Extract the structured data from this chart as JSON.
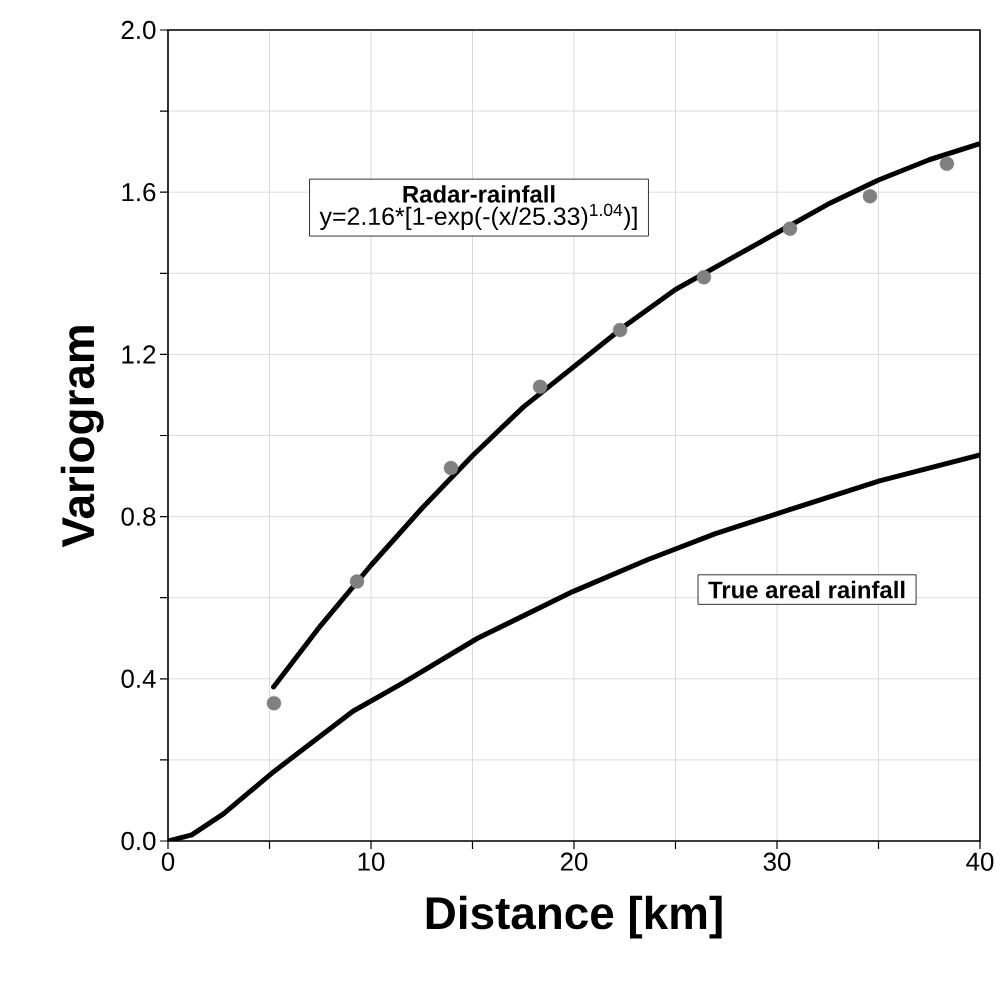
{
  "chart_data": {
    "type": "line",
    "xlabel": "Distance [km]",
    "ylabel": "Variogram",
    "xlim": [
      0,
      40
    ],
    "ylim": [
      0,
      2.0
    ],
    "xticks": [
      0,
      {
        "value": 5,
        "label": null
      },
      10,
      {
        "value": 15,
        "label": null
      },
      20,
      {
        "value": 25,
        "label": null
      },
      30,
      {
        "value": 35,
        "label": null
      },
      40
    ],
    "yticks": [
      {
        "value": 0,
        "label": "0.0"
      },
      {
        "value": 0.2,
        "label": null
      },
      0.4,
      {
        "value": 0.6,
        "label": null
      },
      0.8,
      {
        "value": 1.0,
        "label": null
      },
      1.2,
      {
        "value": 1.4,
        "label": null
      },
      1.6,
      {
        "value": 1.8,
        "label": null
      },
      {
        "value": 2.0,
        "label": "2.0"
      }
    ],
    "grid": true,
    "annotations": [
      "Radar-rainfall",
      "y=2.16*[1-exp(-(x/25.33)$^{1.04}$)]"
    ],
    "series": [
      {
        "type": "scatter",
        "marker": "circle",
        "color": "#808080",
        "x": [
          5.22,
          9.31,
          13.94,
          18.33,
          22.27,
          26.4,
          30.64,
          34.58,
          38.37
        ],
        "values": [
          0.34,
          0.64,
          0.92,
          1.12,
          1.26,
          1.39,
          1.51,
          1.59,
          1.67
        ]
      },
      {
        "color": "#000000",
        "x": [
          5.2,
          7.5,
          10,
          12.5,
          15,
          17.5,
          20,
          22.5,
          25,
          27.5,
          30,
          32.5,
          35,
          37.5,
          40
        ],
        "values": [
          0.38,
          0.53,
          0.68,
          0.82,
          0.95,
          1.07,
          1.17,
          1.27,
          1.36,
          1.43,
          1.5,
          1.57,
          1.63,
          1.68,
          1.72
        ]
      },
      {
        "name": "True areal rainfall",
        "color": "#000000",
        "x": [
          0,
          1.17,
          2.73,
          5.21,
          9.11,
          11.58,
          15.25,
          19.94,
          23.59,
          26.97,
          30.62,
          35.05,
          40
        ],
        "values": [
          0,
          0.015,
          0.067,
          0.171,
          0.32,
          0.39,
          0.5,
          0.615,
          0.693,
          0.758,
          0.817,
          0.888,
          0.952
        ]
      }
    ]
  }
}
